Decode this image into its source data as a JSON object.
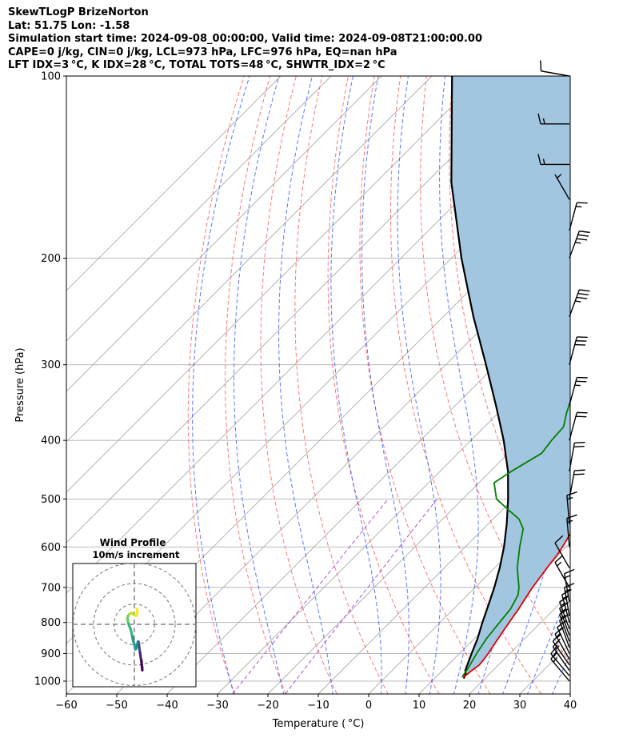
{
  "header": {
    "line1": "SkewTLogP BrizeNorton",
    "line2": "Lat: 51.75   Lon: -1.58",
    "line3": "Simulation start time: 2024-09-08_00:00:00, Valid time: 2024-09-08T21:00:00.00",
    "line4": "CAPE=0 j/kg, CIN=0 j/kg, LCL=973 hPa, LFC=976 hPa, EQ=nan hPa",
    "line5": "LFT IDX=3 °C, K IDX=28 °C, TOTAL TOTS=48 °C, SHWTR_IDX=2 °C"
  },
  "chart_data": [
    {
      "type": "line",
      "subtype": "skew-t log-p",
      "xlabel": "Temperature ( °C)",
      "ylabel": "Pressure (hPa)",
      "xlim": [
        -60,
        40
      ],
      "ylim": [
        1050,
        100
      ],
      "y_scale": "log",
      "x_ticks": [
        -60,
        -50,
        -40,
        -30,
        -20,
        -10,
        0,
        10,
        20,
        30,
        40
      ],
      "y_ticks": [
        1000,
        900,
        800,
        700,
        600,
        500,
        400,
        300,
        200,
        100
      ],
      "grid": true,
      "colors": {
        "temperature": "#e00000",
        "dewpoint": "#008000",
        "parcel": "#000000",
        "cape_fill": "#a3c6e0",
        "dry_adiabats": "#ff5555",
        "moist_adiabats": "#3355ff",
        "mixing_ratio": "#9933cc",
        "isotherms": "#aaaaaa"
      },
      "series": [
        {
          "key": "temperature",
          "pressure": [
            985,
            960,
            940,
            920,
            900,
            880,
            860,
            840,
            820,
            800,
            780,
            760,
            740,
            720,
            700,
            680,
            660,
            640,
            620,
            600,
            580,
            560,
            540,
            520,
            500,
            480,
            460,
            440,
            420,
            400,
            380,
            360,
            340,
            320,
            300,
            290,
            280,
            270,
            260,
            250,
            240,
            230,
            220,
            210,
            200,
            190,
            180,
            170,
            160,
            150,
            140,
            130,
            120,
            110,
            100
          ],
          "values": [
            15.5,
            15.8,
            16.2,
            16.0,
            15.7,
            15.3,
            14.9,
            14.5,
            14.1,
            13.7,
            13.3,
            12.9,
            12.4,
            11.9,
            11.4,
            11.0,
            10.6,
            10.2,
            9.9,
            9.3,
            8.6,
            7.8,
            6.9,
            5.9,
            4.9,
            3.7,
            2.4,
            0.9,
            -0.6,
            -2.0,
            -3.5,
            -5.2,
            -7.0,
            -8.9,
            -10.9,
            -11.7,
            -13.0,
            -14.7,
            -16.9,
            -19.6,
            -22.5,
            -23.0,
            -23.5,
            -24.5,
            -25.0,
            -27.3,
            -28.8,
            -29.8,
            -30.8,
            -32.0,
            -33.7,
            -35.7,
            -37.4,
            -38.6,
            -39.8
          ]
        },
        {
          "key": "dewpoint",
          "pressure": [
            985,
            950,
            900,
            850,
            800,
            760,
            720,
            700,
            650,
            600,
            560,
            540,
            520,
            500,
            470,
            450,
            420,
            400,
            380,
            360,
            340,
            320,
            300,
            290,
            280,
            270,
            260,
            250,
            240,
            230,
            220,
            210,
            200,
            190,
            180,
            170,
            150,
            130,
            115,
            100
          ],
          "values": [
            15.2,
            14.6,
            13.4,
            12.4,
            11.8,
            11.3,
            10.0,
            8.7,
            4.5,
            0.8,
            -2.1,
            -4.8,
            -9.0,
            -13.3,
            -17.0,
            -15.8,
            -13.4,
            -14.0,
            -14.3,
            -16.5,
            -18.5,
            -20.0,
            -20.9,
            -22.2,
            -24.0,
            -26.5,
            -28.7,
            -30.2,
            -31.5,
            -31.7,
            -33.0,
            -35.2,
            -37.5,
            -40.0,
            -43.0,
            -44.7,
            -44.5,
            -45.2,
            -45.0,
            -45.0
          ]
        },
        {
          "key": "parcel",
          "pressure": [
            990,
            973,
            960,
            900,
            850,
            800,
            750,
            700,
            650,
            600,
            550,
            500,
            450,
            400,
            350,
            300,
            250,
            200,
            150,
            100
          ],
          "values": [
            15.8,
            15.3,
            14.5,
            12.4,
            10.6,
            8.4,
            6.2,
            3.8,
            1.0,
            -2.3,
            -6.3,
            -11.0,
            -16.5,
            -23.5,
            -32.0,
            -42.0,
            -54.0,
            -68.0,
            -85.0,
            -106.0
          ]
        }
      ],
      "wind_barbs": {
        "pressure": [
          1000,
          980,
          960,
          940,
          920,
          900,
          880,
          860,
          840,
          820,
          800,
          780,
          740,
          700,
          650,
          600,
          550,
          500,
          450,
          400,
          350,
          300,
          250,
          200,
          180,
          160,
          140,
          120,
          100
        ],
        "speed_kt": [
          15,
          15,
          15,
          15,
          15,
          15,
          15,
          15,
          15,
          15,
          15,
          15,
          15,
          15,
          10,
          15,
          15,
          20,
          20,
          20,
          25,
          30,
          35,
          35,
          15,
          5,
          15,
          15,
          10
        ],
        "direction_deg": [
          320,
          320,
          325,
          325,
          330,
          335,
          340,
          340,
          340,
          340,
          345,
          350,
          350,
          330,
          330,
          355,
          355,
          10,
          10,
          15,
          15,
          15,
          20,
          20,
          15,
          330,
          270,
          270,
          280
        ]
      }
    },
    {
      "type": "line",
      "subtype": "hodograph",
      "title": "Wind Profile",
      "subtitle": "10m/s increment",
      "rings": [
        10,
        20,
        30
      ],
      "u": [
        3.9,
        3.8,
        3.6,
        3.5,
        3.2,
        3.0,
        2.8,
        2.6,
        2.4,
        2.2,
        2.1,
        2.0,
        1.8,
        1.6,
        1.2,
        0.8,
        0.5,
        0.3,
        0.0,
        -0.6,
        -1.2,
        -1.8,
        -2.6,
        -3.2,
        -3.4,
        -3.0,
        -2.5,
        -1.5,
        -0.5,
        0.5,
        1.0,
        1.5,
        1.2
      ],
      "v": [
        -22.5,
        -21.0,
        -19.8,
        -18.2,
        -16.8,
        -15.4,
        -14.0,
        -12.8,
        -11.4,
        -10.0,
        -9.0,
        -8.5,
        -8.5,
        -9.2,
        -10.5,
        -12.0,
        -12.2,
        -11.0,
        -9.8,
        -8.0,
        -5.0,
        -2.5,
        -0.5,
        1.5,
        3.0,
        4.2,
        5.0,
        5.5,
        5.0,
        4.5,
        4.2,
        6.0,
        7.6
      ]
    }
  ]
}
